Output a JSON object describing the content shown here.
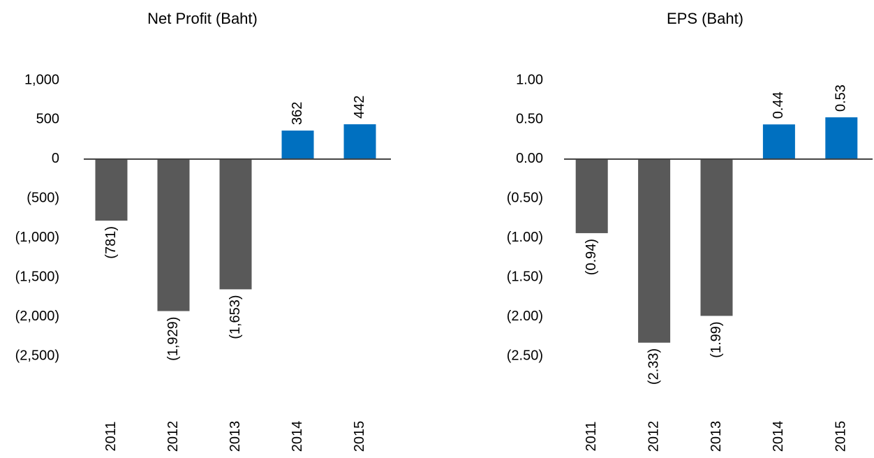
{
  "chart_data": [
    {
      "type": "bar",
      "title": "Net Profit (Baht)",
      "categories": [
        "2011",
        "2012",
        "2013",
        "2014",
        "2015"
      ],
      "values": [
        -781,
        -1929,
        -1653,
        362,
        442
      ],
      "value_labels": [
        "(781)",
        "(1,929)",
        "(1,653)",
        "362",
        "442"
      ],
      "colors": [
        "#595959",
        "#595959",
        "#595959",
        "#0070c0",
        "#0070c0"
      ],
      "ylim": [
        -2500,
        1000
      ],
      "yticks": [
        {
          "value": 1000,
          "label": "1,000"
        },
        500,
        0,
        {
          "value": -500,
          "label": "(500)"
        },
        {
          "value": -1000,
          "label": "(1,000)"
        },
        {
          "value": -1500,
          "label": "(1,500)"
        },
        {
          "value": -2000,
          "label": "(2,000)"
        },
        {
          "value": -2500,
          "label": "(2,500)"
        }
      ],
      "grid": false
    },
    {
      "type": "bar",
      "title": "EPS (Baht)",
      "categories": [
        "2011",
        "2012",
        "2013",
        "2014",
        "2015"
      ],
      "values": [
        -0.94,
        -2.33,
        -1.99,
        0.44,
        0.53
      ],
      "value_labels": [
        "(0.94)",
        "(2.33)",
        "(1.99)",
        "0.44",
        "0.53"
      ],
      "colors": [
        "#595959",
        "#595959",
        "#595959",
        "#0070c0",
        "#0070c0"
      ],
      "ylim": [
        -2.5,
        1
      ],
      "yticks": [
        {
          "value": 1,
          "label": "1.00"
        },
        {
          "value": 0.5,
          "label": "0.50"
        },
        {
          "value": 0,
          "label": "0.00"
        },
        {
          "value": -0.5,
          "label": "(0.50)"
        },
        {
          "value": -1,
          "label": "(1.00)"
        },
        {
          "value": -1.5,
          "label": "(1.50)"
        },
        {
          "value": -2,
          "label": "(2.00)"
        },
        {
          "value": -2.5,
          "label": "(2.50)"
        }
      ],
      "grid": false
    }
  ]
}
